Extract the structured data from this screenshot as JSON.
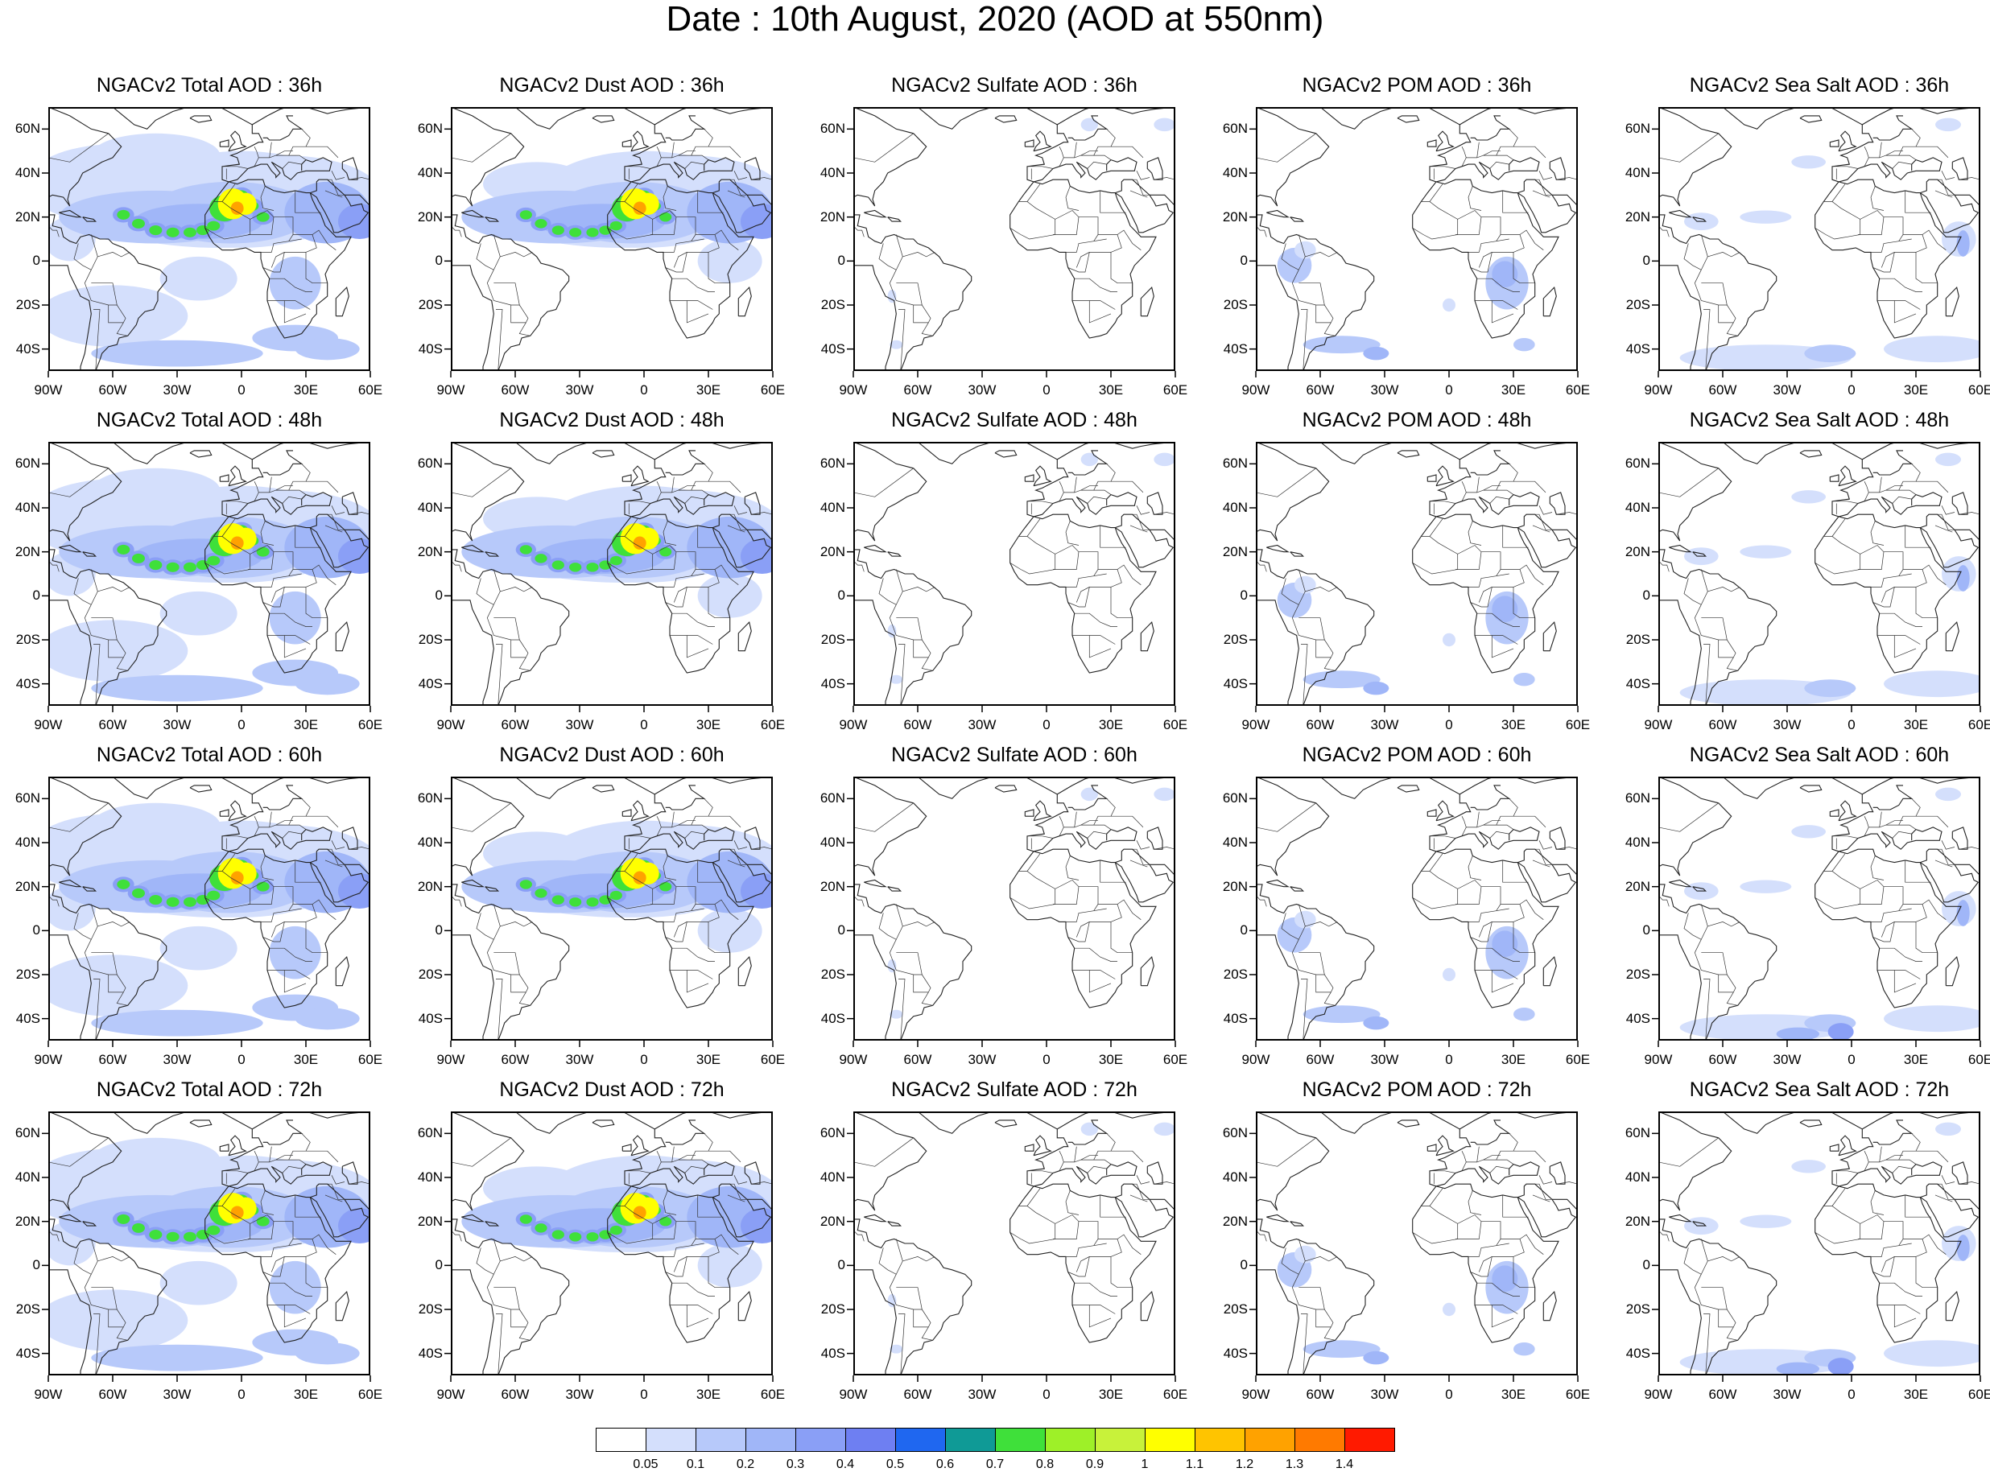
{
  "title": "Date : 10th August, 2020 (AOD at 550nm)",
  "panel_titles": [
    [
      "NGACv2 Total AOD : 36h",
      "NGACv2 Dust AOD : 36h",
      "NGACv2 Sulfate AOD : 36h",
      "NGACv2 POM AOD : 36h",
      "NGACv2 Sea Salt AOD : 36h"
    ],
    [
      "NGACv2 Total AOD : 48h",
      "NGACv2 Dust AOD : 48h",
      "NGACv2 Sulfate AOD : 48h",
      "NGACv2 POM AOD : 48h",
      "NGACv2 Sea Salt AOD : 48h"
    ],
    [
      "NGACv2 Total AOD : 60h",
      "NGACv2 Dust AOD : 60h",
      "NGACv2 Sulfate AOD : 60h",
      "NGACv2 POM AOD : 60h",
      "NGACv2 Sea Salt AOD : 60h"
    ],
    [
      "NGACv2 Total AOD : 72h",
      "NGACv2 Dust AOD : 72h",
      "NGACv2 Sulfate AOD : 72h",
      "NGACv2 POM AOD : 72h",
      "NGACv2 Sea Salt  AOD : 72h"
    ]
  ],
  "lat_ticks": [
    "60N",
    "40N",
    "20N",
    "0",
    "20S",
    "40S"
  ],
  "lon_ticks": [
    "90W",
    "60W",
    "30W",
    "0",
    "30E",
    "60E"
  ],
  "map_extent": {
    "lon": [
      -90,
      60
    ],
    "lat": [
      -50,
      70
    ]
  },
  "colorbar": {
    "labels": [
      "0.05",
      "0.1",
      "0.2",
      "0.3",
      "0.4",
      "0.5",
      "0.6",
      "0.7",
      "0.8",
      "0.9",
      "1",
      "1.1",
      "1.2",
      "1.3",
      "1.4"
    ],
    "colors": [
      "#ffffff",
      "#d4dffc",
      "#b7c9fa",
      "#a0b6f8",
      "#8a9ff6",
      "#6e7ff2",
      "#1f67f0",
      "#0f9a96",
      "#3fe03a",
      "#9ef028",
      "#c8f23a",
      "#ffff00",
      "#ffc400",
      "#ffa200",
      "#ff7a00",
      "#ff1a00"
    ]
  },
  "species": [
    "total",
    "dust",
    "sulfate",
    "pom",
    "seasalt"
  ],
  "field_colors": {
    "l1": "#d4dffc",
    "l2": "#b7c9fa",
    "l3": "#a0b6f8",
    "l4": "#8a9ff6",
    "l5": "#6e7ff2",
    "green": "#3fe03a",
    "yellow": "#ffff00",
    "orange": "#ffa200",
    "red": "#ff5500"
  }
}
